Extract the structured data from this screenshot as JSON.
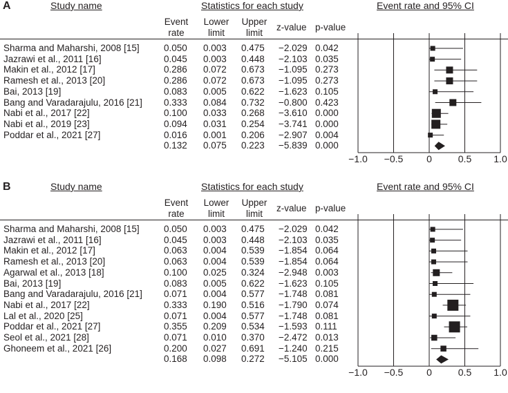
{
  "panels": [
    {
      "letter": "A",
      "headers": {
        "study_name": "Study name",
        "stats": "Statistics for each study",
        "ci": "Event rate and 95% CI",
        "event_rate": "Event rate",
        "lower_limit": "Lower limit",
        "upper_limit": "Upper limit",
        "z_value": "z-value",
        "p_value": "p-value"
      }
    },
    {
      "letter": "B",
      "headers": {
        "study_name": "Study name",
        "stats": "Statistics for each study",
        "ci": "Event rate and 95% CI",
        "event_rate": "Event rate",
        "lower_limit": "Lower limit",
        "upper_limit": "Upper limit",
        "z_value": "z-value",
        "p_value": "p-value"
      }
    }
  ],
  "chart_data": [
    {
      "type": "forest",
      "xlim": [
        -1.0,
        1.0
      ],
      "xticks": [
        "−1.0",
        "−0.5",
        "0",
        "0.5",
        "1.0"
      ],
      "xtick_values": [
        -1.0,
        -0.5,
        0,
        0.5,
        1.0
      ],
      "grid": true,
      "rows": [
        {
          "study": "Sharma and Maharshi, 2008 [15]",
          "event_rate": "0.050",
          "lower": "0.003",
          "upper": "0.475",
          "z": "−2.029",
          "p": "0.042",
          "weight": 1
        },
        {
          "study": "Jazrawi et al., 2011 [16]",
          "event_rate": "0.045",
          "lower": "0.003",
          "upper": "0.448",
          "z": "−2.103",
          "p": "0.035",
          "weight": 1
        },
        {
          "study": "Makin et al., 2012 [17]",
          "event_rate": "0.286",
          "lower": "0.072",
          "upper": "0.673",
          "z": "−1.095",
          "p": "0.273",
          "weight": 2
        },
        {
          "study": "Ramesh et al., 2013 [20]",
          "event_rate": "0.286",
          "lower": "0.072",
          "upper": "0.673",
          "z": "−1.095",
          "p": "0.273",
          "weight": 2
        },
        {
          "study": "Bai, 2013 [19]",
          "event_rate": "0.083",
          "lower": "0.005",
          "upper": "0.622",
          "z": "−1.623",
          "p": "0.105",
          "weight": 1
        },
        {
          "study": "Bang and Varadarajulu, 2016 [21]",
          "event_rate": "0.333",
          "lower": "0.084",
          "upper": "0.732",
          "z": "−0.800",
          "p": "0.423",
          "weight": 2
        },
        {
          "study": "Nabi et al., 2017 [22]",
          "event_rate": "0.100",
          "lower": "0.033",
          "upper": "0.268",
          "z": "−3.610",
          "p": "0.000",
          "weight": 3
        },
        {
          "study": "Nabi et al., 2019 [23]",
          "event_rate": "0.094",
          "lower": "0.031",
          "upper": "0.254",
          "z": "−3.741",
          "p": "0.000",
          "weight": 3
        },
        {
          "study": "Poddar et al., 2021 [27]",
          "event_rate": "0.016",
          "lower": "0.001",
          "upper": "0.206",
          "z": "−2.907",
          "p": "0.004",
          "weight": 1
        }
      ],
      "summary": {
        "event_rate": "0.132",
        "lower": "0.075",
        "upper": "0.223",
        "z": "−5.839",
        "p": "0.000"
      }
    },
    {
      "type": "forest",
      "xlim": [
        -1.0,
        1.0
      ],
      "xticks": [
        "−1.0",
        "−0.5",
        "0",
        "0.5",
        "1.0"
      ],
      "xtick_values": [
        -1.0,
        -0.5,
        0,
        0.5,
        1.0
      ],
      "grid": true,
      "rows": [
        {
          "study": "Sharma and Maharshi, 2008 [15]",
          "event_rate": "0.050",
          "lower": "0.003",
          "upper": "0.475",
          "z": "−2.029",
          "p": "0.042",
          "weight": 1
        },
        {
          "study": "Jazrawi et al., 2011 [16]",
          "event_rate": "0.045",
          "lower": "0.003",
          "upper": "0.448",
          "z": "−2.103",
          "p": "0.035",
          "weight": 1
        },
        {
          "study": "Makin et al., 2012 [17]",
          "event_rate": "0.063",
          "lower": "0.004",
          "upper": "0.539",
          "z": "−1.854",
          "p": "0.064",
          "weight": 1
        },
        {
          "study": "Ramesh et al., 2013 [20]",
          "event_rate": "0.063",
          "lower": "0.004",
          "upper": "0.539",
          "z": "−1.854",
          "p": "0.064",
          "weight": 1
        },
        {
          "study": "Agarwal et al., 2013 [18]",
          "event_rate": "0.100",
          "lower": "0.025",
          "upper": "0.324",
          "z": "−2.948",
          "p": "0.003",
          "weight": 2
        },
        {
          "study": "Bai, 2013 [19]",
          "event_rate": "0.083",
          "lower": "0.005",
          "upper": "0.622",
          "z": "−1.623",
          "p": "0.105",
          "weight": 1
        },
        {
          "study": "Bang and Varadarajulu, 2016 [21]",
          "event_rate": "0.071",
          "lower": "0.004",
          "upper": "0.577",
          "z": "−1.748",
          "p": "0.081",
          "weight": 1
        },
        {
          "study": "Nabi et al., 2017 [22]",
          "event_rate": "0.333",
          "lower": "0.190",
          "upper": "0.516",
          "z": "−1.790",
          "p": "0.074",
          "weight": 4
        },
        {
          "study": "Lal et al., 2020 [25]",
          "event_rate": "0.071",
          "lower": "0.004",
          "upper": "0.577",
          "z": "−1.748",
          "p": "0.081",
          "weight": 1
        },
        {
          "study": "Poddar et al., 2021 [27]",
          "event_rate": "0.355",
          "lower": "0.209",
          "upper": "0.534",
          "z": "−1.593",
          "p": "0.111",
          "weight": 4
        },
        {
          "study": "Seol et al., 2021 [28]",
          "event_rate": "0.071",
          "lower": "0.010",
          "upper": "0.370",
          "z": "−2.472",
          "p": "0.013",
          "weight": 1.5
        },
        {
          "study": "Ghoneem et al., 2021 [26]",
          "event_rate": "0.200",
          "lower": "0.027",
          "upper": "0.691",
          "z": "−1.240",
          "p": "0.215",
          "weight": 1.5
        }
      ],
      "summary": {
        "event_rate": "0.168",
        "lower": "0.098",
        "upper": "0.272",
        "z": "−5.105",
        "p": "0.000"
      }
    }
  ]
}
